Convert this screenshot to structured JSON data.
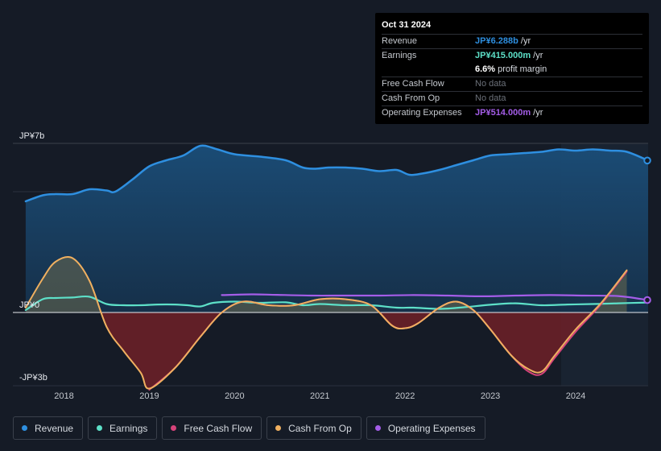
{
  "chart_data": {
    "type": "line",
    "title": "",
    "xlabel": "",
    "ylabel": "",
    "y_unit": "JP¥b",
    "ylim": [
      -3,
      7
    ],
    "y_tick_labels": [
      {
        "value": 7,
        "label": "JP¥7b"
      },
      {
        "value": 0,
        "label": "JP¥0"
      },
      {
        "value": -3,
        "label": "-JP¥3b"
      }
    ],
    "x_ticks": [
      {
        "value": 2018,
        "label": "2018"
      },
      {
        "value": 2019,
        "label": "2019"
      },
      {
        "value": 2020,
        "label": "2020"
      },
      {
        "value": 2021,
        "label": "2021"
      },
      {
        "value": 2022,
        "label": "2022"
      },
      {
        "value": 2023,
        "label": "2023"
      },
      {
        "value": 2024,
        "label": "2024"
      }
    ],
    "xlim": [
      2017.4,
      2024.85
    ],
    "highlight_start": 2023.83,
    "series": [
      {
        "name": "Revenue",
        "color": "#2e8fe0",
        "fill": true,
        "points": [
          [
            2017.55,
            4.6
          ],
          [
            2017.75,
            4.85
          ],
          [
            2017.9,
            4.9
          ],
          [
            2018.1,
            4.9
          ],
          [
            2018.3,
            5.1
          ],
          [
            2018.5,
            5.05
          ],
          [
            2018.6,
            5.0
          ],
          [
            2018.8,
            5.5
          ],
          [
            2019.0,
            6.05
          ],
          [
            2019.2,
            6.3
          ],
          [
            2019.4,
            6.5
          ],
          [
            2019.6,
            6.9
          ],
          [
            2019.8,
            6.75
          ],
          [
            2020.0,
            6.55
          ],
          [
            2020.3,
            6.45
          ],
          [
            2020.6,
            6.3
          ],
          [
            2020.8,
            6.0
          ],
          [
            2020.95,
            5.95
          ],
          [
            2021.1,
            6.0
          ],
          [
            2021.3,
            6.0
          ],
          [
            2021.5,
            5.95
          ],
          [
            2021.7,
            5.85
          ],
          [
            2021.9,
            5.9
          ],
          [
            2022.05,
            5.7
          ],
          [
            2022.2,
            5.75
          ],
          [
            2022.4,
            5.9
          ],
          [
            2022.6,
            6.1
          ],
          [
            2022.8,
            6.3
          ],
          [
            2023.0,
            6.5
          ],
          [
            2023.2,
            6.55
          ],
          [
            2023.4,
            6.6
          ],
          [
            2023.6,
            6.65
          ],
          [
            2023.8,
            6.75
          ],
          [
            2024.0,
            6.7
          ],
          [
            2024.2,
            6.75
          ],
          [
            2024.4,
            6.7
          ],
          [
            2024.6,
            6.65
          ],
          [
            2024.85,
            6.29
          ]
        ]
      },
      {
        "name": "Earnings",
        "color": "#5de0c8",
        "fill": false,
        "points": [
          [
            2017.55,
            0.1
          ],
          [
            2017.75,
            0.55
          ],
          [
            2017.9,
            0.6
          ],
          [
            2018.1,
            0.62
          ],
          [
            2018.3,
            0.65
          ],
          [
            2018.5,
            0.35
          ],
          [
            2018.7,
            0.3
          ],
          [
            2018.9,
            0.3
          ],
          [
            2019.1,
            0.33
          ],
          [
            2019.3,
            0.33
          ],
          [
            2019.45,
            0.3
          ],
          [
            2019.6,
            0.25
          ],
          [
            2019.75,
            0.4
          ],
          [
            2020.0,
            0.45
          ],
          [
            2020.3,
            0.4
          ],
          [
            2020.6,
            0.42
          ],
          [
            2020.8,
            0.3
          ],
          [
            2021.0,
            0.35
          ],
          [
            2021.3,
            0.3
          ],
          [
            2021.6,
            0.3
          ],
          [
            2021.9,
            0.2
          ],
          [
            2022.1,
            0.2
          ],
          [
            2022.4,
            0.15
          ],
          [
            2022.7,
            0.22
          ],
          [
            2023.0,
            0.32
          ],
          [
            2023.3,
            0.38
          ],
          [
            2023.6,
            0.3
          ],
          [
            2023.9,
            0.33
          ],
          [
            2024.2,
            0.35
          ],
          [
            2024.5,
            0.38
          ],
          [
            2024.85,
            0.415
          ]
        ]
      },
      {
        "name": "Free Cash Flow",
        "color": "#d6437a",
        "fill": true,
        "points": [
          [
            2019.0,
            -3.2
          ],
          [
            2019.3,
            -2.3
          ],
          [
            2019.6,
            -1.0
          ],
          [
            2019.85,
            0.0
          ],
          [
            2020.1,
            0.45
          ],
          [
            2020.4,
            0.3
          ],
          [
            2020.7,
            0.3
          ],
          [
            2021.0,
            0.55
          ],
          [
            2021.3,
            0.55
          ],
          [
            2021.6,
            0.3
          ],
          [
            2021.85,
            -0.55
          ],
          [
            2022.0,
            -0.65
          ],
          [
            2022.15,
            -0.45
          ],
          [
            2022.4,
            0.2
          ],
          [
            2022.6,
            0.45
          ],
          [
            2022.8,
            0.1
          ],
          [
            2023.0,
            -0.7
          ],
          [
            2023.25,
            -1.8
          ],
          [
            2023.45,
            -2.45
          ],
          [
            2023.6,
            -2.55
          ],
          [
            2023.75,
            -1.9
          ],
          [
            2024.0,
            -0.8
          ],
          [
            2024.3,
            0.35
          ],
          [
            2024.6,
            1.7
          ]
        ]
      },
      {
        "name": "Cash From Op",
        "color": "#f0b060",
        "fill": true,
        "points": [
          [
            2017.55,
            0.2
          ],
          [
            2017.75,
            1.4
          ],
          [
            2017.9,
            2.1
          ],
          [
            2018.1,
            2.25
          ],
          [
            2018.3,
            1.3
          ],
          [
            2018.5,
            -0.6
          ],
          [
            2018.7,
            -1.6
          ],
          [
            2018.9,
            -2.5
          ],
          [
            2019.0,
            -3.15
          ],
          [
            2019.3,
            -2.3
          ],
          [
            2019.6,
            -1.0
          ],
          [
            2019.85,
            0.0
          ],
          [
            2020.1,
            0.45
          ],
          [
            2020.4,
            0.3
          ],
          [
            2020.7,
            0.3
          ],
          [
            2021.0,
            0.55
          ],
          [
            2021.3,
            0.55
          ],
          [
            2021.6,
            0.3
          ],
          [
            2021.85,
            -0.55
          ],
          [
            2022.0,
            -0.65
          ],
          [
            2022.15,
            -0.45
          ],
          [
            2022.4,
            0.2
          ],
          [
            2022.6,
            0.45
          ],
          [
            2022.8,
            0.1
          ],
          [
            2023.0,
            -0.7
          ],
          [
            2023.25,
            -1.8
          ],
          [
            2023.45,
            -2.35
          ],
          [
            2023.6,
            -2.45
          ],
          [
            2023.75,
            -1.8
          ],
          [
            2024.0,
            -0.7
          ],
          [
            2024.3,
            0.4
          ],
          [
            2024.6,
            1.75
          ]
        ]
      },
      {
        "name": "Operating Expenses",
        "color": "#a45de8",
        "fill": false,
        "points": [
          [
            2019.85,
            0.72
          ],
          [
            2020.2,
            0.75
          ],
          [
            2020.5,
            0.73
          ],
          [
            2020.9,
            0.7
          ],
          [
            2021.3,
            0.7
          ],
          [
            2021.7,
            0.7
          ],
          [
            2022.1,
            0.72
          ],
          [
            2022.5,
            0.7
          ],
          [
            2022.9,
            0.67
          ],
          [
            2023.3,
            0.7
          ],
          [
            2023.7,
            0.72
          ],
          [
            2024.1,
            0.7
          ],
          [
            2024.5,
            0.68
          ],
          [
            2024.85,
            0.514
          ]
        ]
      }
    ]
  },
  "tooltip": {
    "date": "Oct 31 2024",
    "rows": [
      {
        "label": "Revenue",
        "value": "JP¥6.288b",
        "suffix": " /yr",
        "color": "#2e8fe0"
      },
      {
        "label": "Earnings",
        "value": "JP¥415.000m",
        "suffix": " /yr",
        "color": "#5de0c8"
      },
      {
        "label": "",
        "value": "6.6%",
        "suffix": " profit margin",
        "color": "#ffffff"
      },
      {
        "label": "Free Cash Flow",
        "value": "No data",
        "suffix": "",
        "color": "#6c717a"
      },
      {
        "label": "Cash From Op",
        "value": "No data",
        "suffix": "",
        "color": "#6c717a"
      },
      {
        "label": "Operating Expenses",
        "value": "JP¥514.000m",
        "suffix": " /yr",
        "color": "#a45de8"
      }
    ]
  },
  "legend": [
    {
      "label": "Revenue",
      "color": "#2e8fe0"
    },
    {
      "label": "Earnings",
      "color": "#5de0c8"
    },
    {
      "label": "Free Cash Flow",
      "color": "#d6437a"
    },
    {
      "label": "Cash From Op",
      "color": "#f0b060"
    },
    {
      "label": "Operating Expenses",
      "color": "#a45de8"
    }
  ]
}
